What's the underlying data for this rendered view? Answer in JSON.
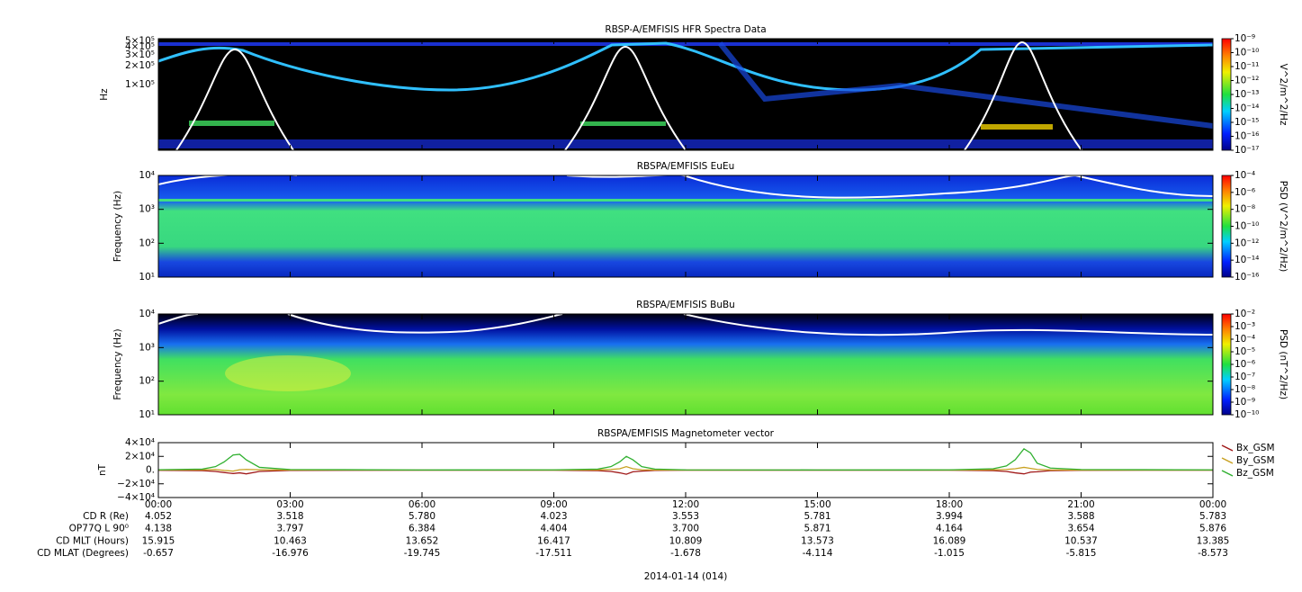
{
  "chart_data": [
    {
      "type": "spectrogram",
      "title": "RBSP-A/EMFISIS  HFR Spectra Data",
      "ylabel": "Hz",
      "ylog": true,
      "ylim": [
        9000,
        540000
      ],
      "yticks": [
        {
          "value": 100000,
          "label": "1×10⁵"
        },
        {
          "value": 200000,
          "label": "2×10⁵"
        },
        {
          "value": 300000,
          "label": "3×10⁵"
        },
        {
          "value": 400000,
          "label": "4×10⁵"
        },
        {
          "value": 500000,
          "label": "5×10⁵"
        }
      ],
      "colorbar": {
        "label": "V^2/m^2/Hz",
        "zlog": true,
        "zlim": [
          1e-17,
          1e-09
        ],
        "zticks": [
          {
            "value": 1e-09,
            "label": "10⁻⁹"
          },
          {
            "value": 1e-10,
            "label": "10⁻¹⁰"
          },
          {
            "value": 1e-11,
            "label": "10⁻¹¹"
          },
          {
            "value": 1e-12,
            "label": "10⁻¹²"
          },
          {
            "value": 1e-13,
            "label": "10⁻¹³"
          },
          {
            "value": 1e-14,
            "label": "10⁻¹⁴"
          },
          {
            "value": 1e-15,
            "label": "10⁻¹⁵"
          },
          {
            "value": 1e-16,
            "label": "10⁻¹⁶"
          },
          {
            "value": 1e-17,
            "label": "10⁻¹⁷"
          }
        ]
      }
    },
    {
      "type": "spectrogram",
      "title": "RBSPA/EMFISIS  EuEu",
      "ylabel": "Frequency (Hz)",
      "ylog": true,
      "ylim": [
        10,
        10000
      ],
      "yticks": [
        {
          "value": 10,
          "label": "10¹"
        },
        {
          "value": 100,
          "label": "10²"
        },
        {
          "value": 1000,
          "label": "10³"
        },
        {
          "value": 10000,
          "label": "10⁴"
        }
      ],
      "colorbar": {
        "label": "PSD (V^2/m^2/Hz)",
        "zlog": true,
        "zlim": [
          1e-16,
          0.0001
        ],
        "zticks": [
          {
            "value": 0.0001,
            "label": "10⁻⁴"
          },
          {
            "value": 1e-06,
            "label": "10⁻⁶"
          },
          {
            "value": 1e-08,
            "label": "10⁻⁸"
          },
          {
            "value": 1e-10,
            "label": "10⁻¹⁰"
          },
          {
            "value": 1e-12,
            "label": "10⁻¹²"
          },
          {
            "value": 1e-14,
            "label": "10⁻¹⁴"
          },
          {
            "value": 1e-16,
            "label": "10⁻¹⁶"
          }
        ]
      }
    },
    {
      "type": "spectrogram",
      "title": "RBSPA/EMFISIS  BuBu",
      "ylabel": "Frequency (Hz)",
      "ylog": true,
      "ylim": [
        10,
        10000
      ],
      "yticks": [
        {
          "value": 10,
          "label": "10¹"
        },
        {
          "value": 100,
          "label": "10²"
        },
        {
          "value": 1000,
          "label": "10³"
        },
        {
          "value": 10000,
          "label": "10⁴"
        }
      ],
      "colorbar": {
        "label": "PSD (nT^2/Hz)",
        "zlog": true,
        "zlim": [
          1e-10,
          0.01
        ],
        "zticks": [
          {
            "value": 0.01,
            "label": "10⁻²"
          },
          {
            "value": 0.001,
            "label": "10⁻³"
          },
          {
            "value": 0.0001,
            "label": "10⁻⁴"
          },
          {
            "value": 1e-05,
            "label": "10⁻⁵"
          },
          {
            "value": 1e-06,
            "label": "10⁻⁶"
          },
          {
            "value": 1e-07,
            "label": "10⁻⁷"
          },
          {
            "value": 1e-08,
            "label": "10⁻⁸"
          },
          {
            "value": 1e-09,
            "label": "10⁻⁹"
          },
          {
            "value": 1e-10,
            "label": "10⁻¹⁰"
          }
        ]
      }
    },
    {
      "type": "line",
      "title": "RBSPA/EMFISIS  Magnetometer vector",
      "ylabel": "nT",
      "ylim": [
        -40000,
        40000
      ],
      "yticks": [
        {
          "value": -40000,
          "label": "−4×10⁴"
        },
        {
          "value": -20000,
          "label": "−2×10⁴"
        },
        {
          "value": 0,
          "label": "0."
        },
        {
          "value": 20000,
          "label": "2×10⁴"
        },
        {
          "value": 40000,
          "label": "4×10⁴"
        }
      ],
      "x": [
        0,
        1,
        1.3,
        1.5,
        1.7,
        1.85,
        2,
        2.3,
        3,
        6,
        9,
        10,
        10.3,
        10.5,
        10.65,
        10.8,
        11,
        11.3,
        12,
        15,
        18,
        19,
        19.3,
        19.5,
        19.7,
        19.85,
        20,
        20.3,
        21,
        24
      ],
      "series": [
        {
          "name": "Bx_GSM",
          "color": "#a01818",
          "values": [
            -300,
            -800,
            -2000,
            -3500,
            -5000,
            -4000,
            -5500,
            -2000,
            -500,
            -100,
            -200,
            -800,
            -2000,
            -4000,
            -6000,
            -2500,
            -1500,
            -500,
            -100,
            -100,
            -200,
            -800,
            -2000,
            -4000,
            -5500,
            -3000,
            -2500,
            -800,
            -300,
            -100
          ]
        },
        {
          "name": "By_GSM",
          "color": "#c8a020",
          "values": [
            200,
            500,
            800,
            -500,
            -1500,
            500,
            1000,
            500,
            200,
            0,
            100,
            400,
            1000,
            2000,
            5000,
            2000,
            500,
            200,
            0,
            0,
            100,
            500,
            1000,
            2000,
            4000,
            2500,
            1000,
            300,
            100,
            0
          ]
        },
        {
          "name": "Bz_GSM",
          "color": "#30b030",
          "values": [
            500,
            1500,
            5000,
            12000,
            22000,
            23000,
            15000,
            4000,
            800,
            200,
            300,
            1500,
            5000,
            12000,
            20000,
            15000,
            5000,
            1500,
            300,
            200,
            300,
            2000,
            6000,
            15000,
            31000,
            25000,
            10000,
            3000,
            800,
            300
          ]
        }
      ]
    }
  ],
  "x_axis": {
    "xlim": [
      0,
      24
    ],
    "xticks": [
      {
        "value": 0,
        "label": "00:00"
      },
      {
        "value": 3,
        "label": "03:00"
      },
      {
        "value": 6,
        "label": "06:00"
      },
      {
        "value": 9,
        "label": "09:00"
      },
      {
        "value": 12,
        "label": "12:00"
      },
      {
        "value": 15,
        "label": "15:00"
      },
      {
        "value": 18,
        "label": "18:00"
      },
      {
        "value": 21,
        "label": "21:00"
      },
      {
        "value": 24,
        "label": "00:00"
      }
    ],
    "date": "2014-01-14 (014)"
  },
  "ephemeris": [
    {
      "label": "CD R (Re)",
      "values": [
        "4.052",
        "3.518",
        "5.780",
        "4.023",
        "3.553",
        "5.781",
        "3.994",
        "3.588",
        "5.783"
      ]
    },
    {
      "label": "OP77Q L 90⁰",
      "values": [
        "4.138",
        "3.797",
        "6.384",
        "4.404",
        "3.700",
        "5.871",
        "4.164",
        "3.654",
        "5.876"
      ]
    },
    {
      "label": "CD MLT (Hours)",
      "values": [
        "15.915",
        "10.463",
        "13.652",
        "16.417",
        "10.809",
        "13.573",
        "16.089",
        "10.537",
        "13.385"
      ]
    },
    {
      "label": "CD MLAT (Degrees)",
      "values": [
        "-0.657",
        "-16.976",
        "-19.745",
        "-17.511",
        "-1.678",
        "-4.114",
        "-1.015",
        "-5.815",
        "-8.573"
      ]
    }
  ]
}
